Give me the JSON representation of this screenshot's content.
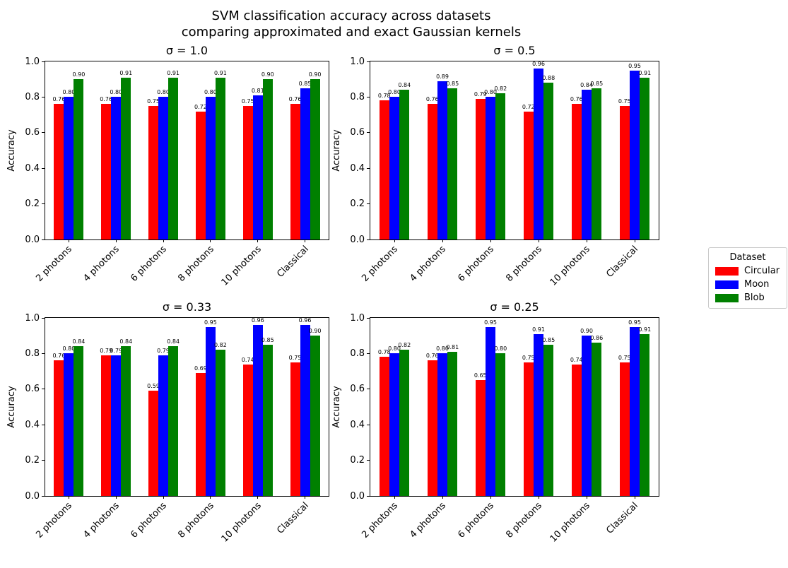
{
  "figure": {
    "title_line1": "SVM classification accuracy across datasets",
    "title_line2": "comparing approximated and exact Gaussian kernels"
  },
  "legend": {
    "title": "Dataset",
    "position": "center right",
    "entries": [
      {
        "label": "Circular",
        "color": "#ff0000"
      },
      {
        "label": "Moon",
        "color": "#0000ff"
      },
      {
        "label": "Blob",
        "color": "#008000"
      }
    ]
  },
  "chart_data": [
    {
      "type": "bar",
      "title": "σ = 1.0",
      "ylabel": "Accuracy",
      "ylim": [
        0.0,
        1.0
      ],
      "yticks": [
        "0.0",
        "0.2",
        "0.4",
        "0.6",
        "0.8",
        "1.0"
      ],
      "grid": false,
      "bar_labels": true,
      "categories": [
        "2 photons",
        "4 photons",
        "6 photons",
        "8 photons",
        "10 photons",
        "Classical"
      ],
      "series": [
        {
          "name": "Circular",
          "color": "#ff0000",
          "values": [
            0.76,
            0.76,
            0.75,
            0.72,
            0.75,
            0.76
          ]
        },
        {
          "name": "Moon",
          "color": "#0000ff",
          "values": [
            0.8,
            0.8,
            0.8,
            0.8,
            0.81,
            0.85
          ]
        },
        {
          "name": "Blob",
          "color": "#008000",
          "values": [
            0.9,
            0.91,
            0.91,
            0.91,
            0.9,
            0.9
          ]
        }
      ]
    },
    {
      "type": "bar",
      "title": "σ = 0.5",
      "ylabel": "Accuracy",
      "ylim": [
        0.0,
        1.0
      ],
      "yticks": [
        "0.0",
        "0.2",
        "0.4",
        "0.6",
        "0.8",
        "1.0"
      ],
      "grid": false,
      "bar_labels": true,
      "categories": [
        "2 photons",
        "4 photons",
        "6 photons",
        "8 photons",
        "10 photons",
        "Classical"
      ],
      "series": [
        {
          "name": "Circular",
          "color": "#ff0000",
          "values": [
            0.78,
            0.76,
            0.79,
            0.72,
            0.76,
            0.75
          ]
        },
        {
          "name": "Moon",
          "color": "#0000ff",
          "values": [
            0.8,
            0.89,
            0.8,
            0.96,
            0.84,
            0.95
          ]
        },
        {
          "name": "Blob",
          "color": "#008000",
          "values": [
            0.84,
            0.85,
            0.82,
            0.88,
            0.85,
            0.91
          ]
        }
      ]
    },
    {
      "type": "bar",
      "title": "σ = 0.33",
      "ylabel": "Accuracy",
      "ylim": [
        0.0,
        1.0
      ],
      "yticks": [
        "0.0",
        "0.2",
        "0.4",
        "0.6",
        "0.8",
        "1.0"
      ],
      "grid": false,
      "bar_labels": true,
      "categories": [
        "2 photons",
        "4 photons",
        "6 photons",
        "8 photons",
        "10 photons",
        "Classical"
      ],
      "series": [
        {
          "name": "Circular",
          "color": "#ff0000",
          "values": [
            0.76,
            0.79,
            0.59,
            0.69,
            0.74,
            0.75
          ]
        },
        {
          "name": "Moon",
          "color": "#0000ff",
          "values": [
            0.8,
            0.79,
            0.79,
            0.95,
            0.96,
            0.96
          ]
        },
        {
          "name": "Blob",
          "color": "#008000",
          "values": [
            0.84,
            0.84,
            0.84,
            0.82,
            0.85,
            0.9
          ]
        }
      ]
    },
    {
      "type": "bar",
      "title": "σ = 0.25",
      "ylabel": "Accuracy",
      "ylim": [
        0.0,
        1.0
      ],
      "yticks": [
        "0.0",
        "0.2",
        "0.4",
        "0.6",
        "0.8",
        "1.0"
      ],
      "grid": false,
      "bar_labels": true,
      "categories": [
        "2 photons",
        "4 photons",
        "6 photons",
        "8 photons",
        "10 photons",
        "Classical"
      ],
      "series": [
        {
          "name": "Circular",
          "color": "#ff0000",
          "values": [
            0.78,
            0.76,
            0.65,
            0.75,
            0.74,
            0.75
          ]
        },
        {
          "name": "Moon",
          "color": "#0000ff",
          "values": [
            0.8,
            0.8,
            0.95,
            0.91,
            0.9,
            0.95
          ]
        },
        {
          "name": "Blob",
          "color": "#008000",
          "values": [
            0.82,
            0.81,
            0.8,
            0.85,
            0.86,
            0.91
          ]
        }
      ]
    }
  ]
}
